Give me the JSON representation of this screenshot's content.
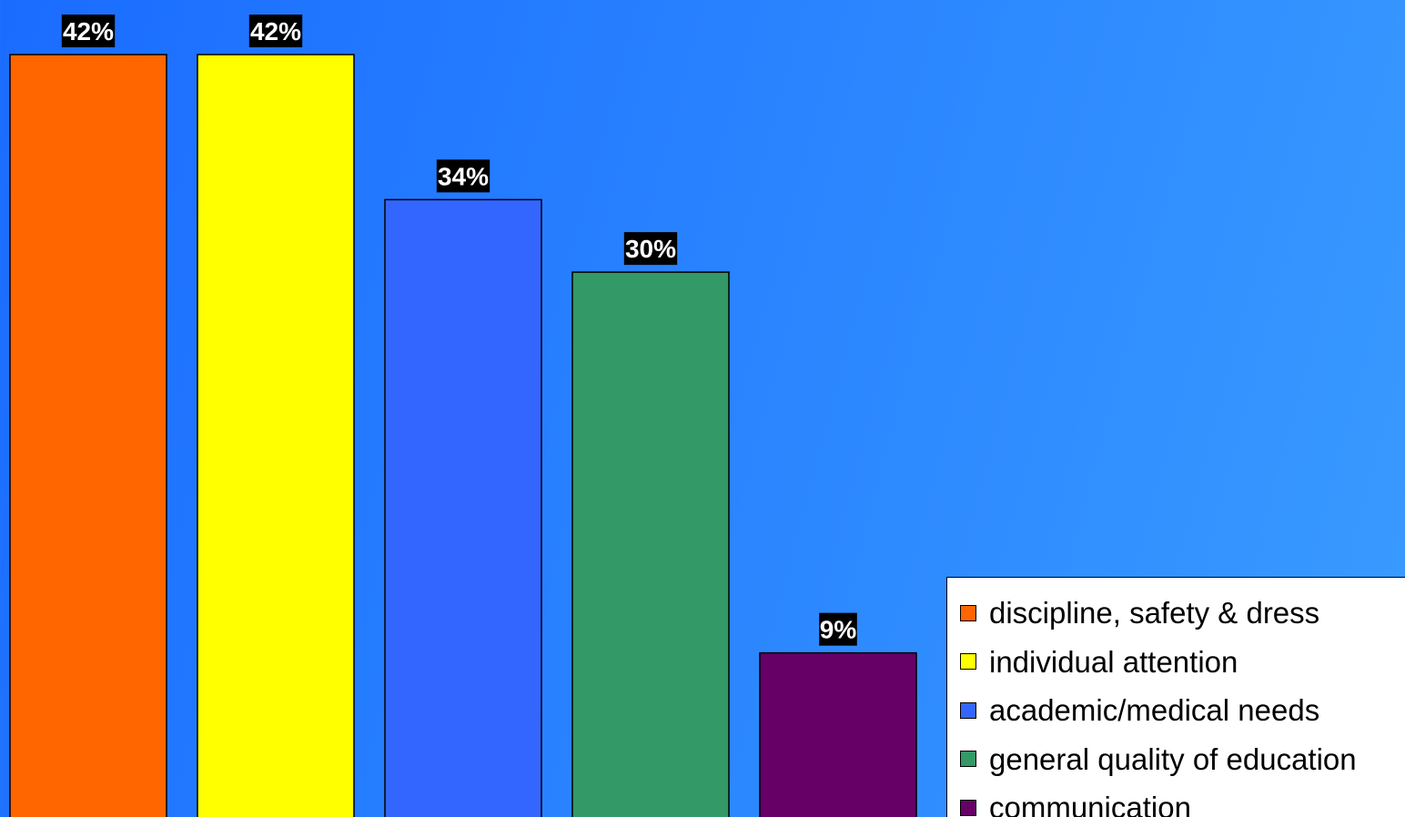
{
  "chart_data": {
    "type": "bar",
    "categories": [
      "discipline, safety & dress",
      "individual attention",
      "academic/medical needs",
      "general quality of education",
      "communication"
    ],
    "values": [
      42,
      42,
      34,
      30,
      9
    ],
    "value_labels": [
      "42%",
      "42%",
      "34%",
      "30%",
      "9%"
    ],
    "colors": [
      "#ff6600",
      "#ffff00",
      "#3366ff",
      "#339966",
      "#660066"
    ],
    "ylim": [
      0,
      42
    ],
    "grid": false,
    "legend_position": "bottom-right",
    "title": "",
    "xlabel": "",
    "ylabel": ""
  },
  "legend": {
    "items": [
      {
        "label": "discipline, safety & dress",
        "color": "#ff6600"
      },
      {
        "label": "individual attention",
        "color": "#ffff00"
      },
      {
        "label": "academic/medical needs",
        "color": "#3366ff"
      },
      {
        "label": "general quality of education",
        "color": "#339966"
      },
      {
        "label": "communication",
        "color": "#660066"
      }
    ]
  }
}
